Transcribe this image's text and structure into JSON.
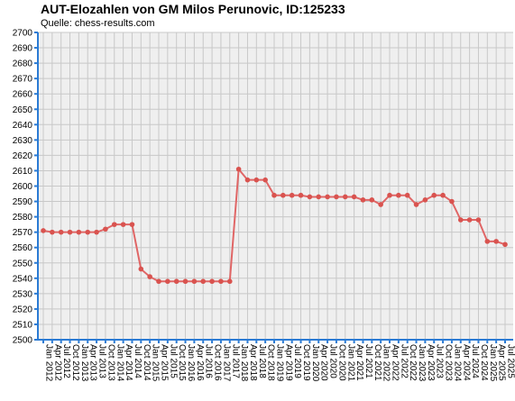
{
  "header": {
    "title": "AUT-Elozahlen von GM Milos Perunovic, ID:125233",
    "source": "Quelle: chess-results.com"
  },
  "chart_data": {
    "type": "line",
    "title": "AUT-Elozahlen von GM Milos Perunovic, ID:125233",
    "subtitle": "Quelle: chess-results.com",
    "xlabel": "",
    "ylabel": "",
    "ylim": [
      2500,
      2700
    ],
    "ytick_step": 10,
    "grid": true,
    "colors": {
      "line": "#e06666",
      "point": "#d9534f",
      "axis": "#2b7bd4",
      "grid": "#c8c8c8",
      "plot_bg": "#efefef"
    },
    "categories": [
      "Jan 2012",
      "Apr 2012",
      "Jul 2012",
      "Oct 2012",
      "Jan 2013",
      "Apr 2013",
      "Jul 2013",
      "Oct 2013",
      "Jan 2014",
      "Apr 2014",
      "Jul 2014",
      "Oct 2014",
      "Jan 2015",
      "Apr 2015",
      "Jul 2015",
      "Oct 2015",
      "Jan 2016",
      "Apr 2016",
      "Jul 2016",
      "Oct 2016",
      "Jan 2017",
      "Jul 2017",
      "Jan 2018",
      "Apr 2018",
      "Jul 2018",
      "Oct 2018",
      "Jan 2019",
      "Apr 2019",
      "Jul 2019",
      "Oct 2019",
      "Jan 2020",
      "Apr 2020",
      "Jul 2020",
      "Oct 2020",
      "Jan 2021",
      "Apr 2021",
      "Jul 2021",
      "Oct 2021",
      "Jan 2022",
      "Apr 2022",
      "Jul 2022",
      "Oct 2022",
      "Jan 2023",
      "Apr 2023",
      "Jul 2023",
      "Oct 2023",
      "Jan 2024",
      "Apr 2024",
      "Jul 2024",
      "Oct 2024",
      "Jan 2025",
      "Apr 2025",
      "Jul 2025"
    ],
    "series": [
      {
        "values": [
          2571,
          2570,
          2570,
          2570,
          2570,
          2570,
          2570,
          2572,
          2575,
          2575,
          2575,
          2546,
          2541,
          2538,
          2538,
          2538,
          2538,
          2538,
          2538,
          2538,
          2538,
          2538,
          2611,
          2604,
          2604,
          2604,
          2594,
          2594,
          2594,
          2594,
          2593,
          2593,
          2593,
          2593,
          2593,
          2593,
          2591,
          2591,
          2588,
          2594,
          2594,
          2594,
          2588,
          2591,
          2594,
          2594,
          2590,
          2578,
          2578,
          2578,
          2564,
          2564,
          2562
        ]
      }
    ]
  }
}
